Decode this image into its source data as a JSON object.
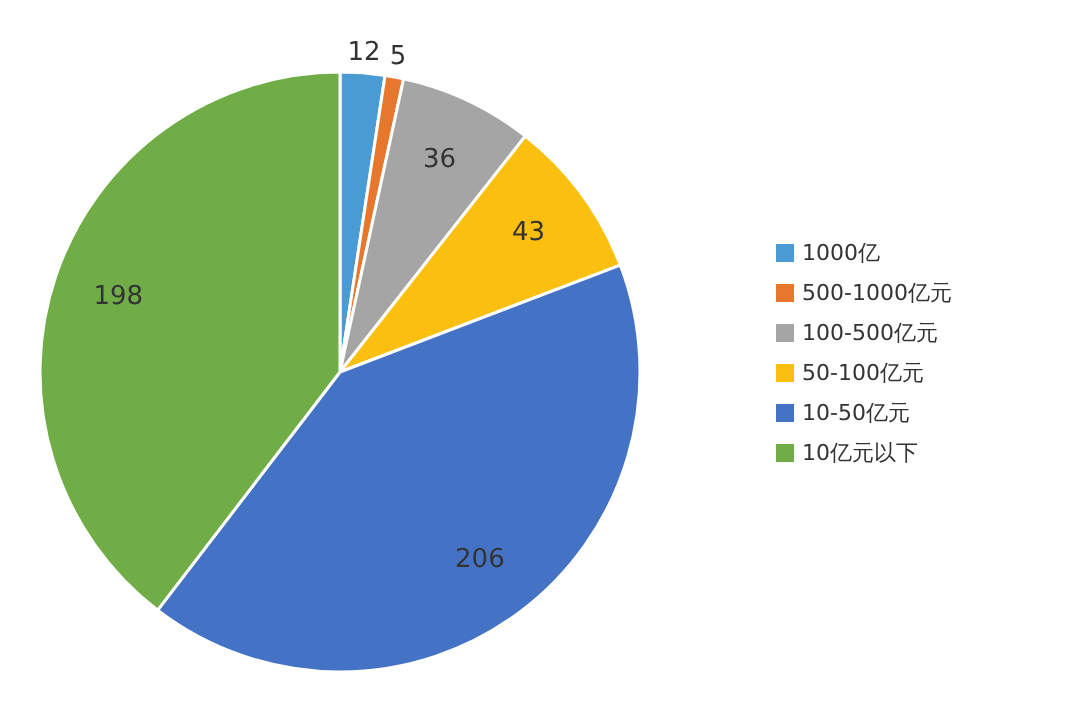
{
  "chart_data": {
    "type": "pie",
    "categories": [
      "1000亿",
      "500-1000亿元",
      "100-500亿元",
      "50-100亿元",
      "10-50亿元",
      "10亿元以下"
    ],
    "values": [
      12,
      5,
      36,
      43,
      206,
      198
    ],
    "colors": [
      "#4a9ad4",
      "#e8772e",
      "#a5a5a5",
      "#fbbf0f",
      "#4472c4",
      "#70ad47"
    ],
    "data_labels": true,
    "legend": "right"
  }
}
